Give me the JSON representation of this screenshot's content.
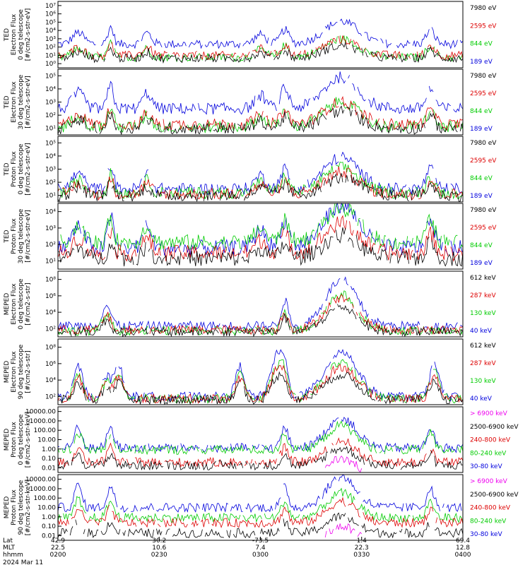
{
  "chart_data": [
    {
      "type": "line",
      "instrument": "TED",
      "ylabel": [
        "TED",
        "Electron Flux",
        "0 deg telescope",
        "[#/cm2-s-str-eV]"
      ],
      "y_ticks": [
        "10⁰",
        "10¹",
        "10²",
        "10³",
        "10⁴",
        "10⁵",
        "10⁶",
        "10⁷"
      ],
      "ylim_log": [
        0,
        7
      ],
      "series": [
        {
          "name": "7980 eV",
          "color": "#000000",
          "profile": "black",
          "level": 1.0
        },
        {
          "name": "2595 eV",
          "color": "#dd0000",
          "profile": "red",
          "level": 1.3
        },
        {
          "name": "844 eV",
          "color": "#00cc00",
          "profile": "green",
          "level": 1.1
        },
        {
          "name": "189 eV",
          "color": "#0000dd",
          "profile": "blue",
          "level": 2.5
        }
      ]
    },
    {
      "type": "line",
      "instrument": "TED",
      "ylabel": [
        "TED",
        "Electron Flux",
        "30 deg telescope",
        "[#/cm2-s-str-eV]"
      ],
      "y_ticks": [
        "10¹",
        "10²",
        "10³",
        "10⁴",
        "10⁵"
      ],
      "ylim_log": [
        0.5,
        5.5
      ],
      "series": [
        {
          "name": "7980 eV",
          "color": "#000000",
          "profile": "black",
          "level": 1.0
        },
        {
          "name": "2595 eV",
          "color": "#dd0000",
          "profile": "red",
          "level": 1.3
        },
        {
          "name": "844 eV",
          "color": "#00cc00",
          "profile": "green",
          "level": 1.1
        },
        {
          "name": "189 eV",
          "color": "#0000dd",
          "profile": "blue",
          "level": 2.5
        }
      ]
    },
    {
      "type": "line",
      "instrument": "TED",
      "ylabel": [
        "TED",
        "Proton Flux",
        "0 deg telescope",
        "[#/cm2-s-str-eV]"
      ],
      "y_ticks": [
        "10¹",
        "10²",
        "10³",
        "10⁴",
        "10⁵"
      ],
      "ylim_log": [
        0.5,
        5.5
      ],
      "series": [
        {
          "name": "7980 eV",
          "color": "#000000",
          "profile": "black",
          "level": 1.0
        },
        {
          "name": "2595 eV",
          "color": "#dd0000",
          "profile": "red",
          "level": 1.1
        },
        {
          "name": "844 eV",
          "color": "#00cc00",
          "profile": "green",
          "level": 1.2
        },
        {
          "name": "189 eV",
          "color": "#0000dd",
          "profile": "blue",
          "level": 1.5
        }
      ]
    },
    {
      "type": "line",
      "instrument": "TED",
      "ylabel": [
        "TED",
        "Proton Flux",
        "30 deg telescope",
        "[#/cm2-s-str-eV]"
      ],
      "y_ticks": [
        "10¹",
        "10²",
        "10³",
        "10⁴"
      ],
      "ylim_log": [
        0.8,
        4.5
      ],
      "series": [
        {
          "name": "7980 eV",
          "color": "#000000",
          "profile": "black",
          "level": 1.4
        },
        {
          "name": "2595 eV",
          "color": "#dd0000",
          "profile": "red",
          "level": 1.7
        },
        {
          "name": "844 eV",
          "color": "#00cc00",
          "profile": "green",
          "level": 2.3
        },
        {
          "name": "189 eV",
          "color": "#0000dd",
          "profile": "blue",
          "level": 2.0
        }
      ]
    },
    {
      "type": "line",
      "instrument": "MEPED",
      "ylabel": [
        "MEPED",
        "Electron Flux",
        "0 deg telescope",
        "[#/cm2-s-str]"
      ],
      "y_ticks": [
        "10²",
        "10⁴",
        "10⁶",
        "10⁸"
      ],
      "ylim_log": [
        1.5,
        8
      ],
      "series": [
        {
          "name": "612 keV",
          "color": "#000000",
          "profile": "black",
          "level": 2.0
        },
        {
          "name": "287 keV",
          "color": "#dd0000",
          "profile": "red",
          "level": 2.2
        },
        {
          "name": "130 keV",
          "color": "#00cc00",
          "profile": "green",
          "level": 2.1
        },
        {
          "name": "40 keV",
          "color": "#0000dd",
          "profile": "blue",
          "level": 2.6
        }
      ]
    },
    {
      "type": "line",
      "instrument": "MEPED",
      "ylabel": [
        "MEPED",
        "Electron Flux",
        "90 deg telescope",
        "[#/cm2-s-str]"
      ],
      "y_ticks": [
        "10²",
        "10⁴",
        "10⁶",
        "10⁸"
      ],
      "ylim_log": [
        1.5,
        8
      ],
      "series": [
        {
          "name": "612 keV",
          "color": "#000000",
          "profile": "black",
          "level": 2.0
        },
        {
          "name": "287 keV",
          "color": "#dd0000",
          "profile": "red",
          "level": 2.1
        },
        {
          "name": "130 keV",
          "color": "#00cc00",
          "profile": "green",
          "level": 2.1
        },
        {
          "name": "40 keV",
          "color": "#0000dd",
          "profile": "blue",
          "level": 2.3
        }
      ]
    },
    {
      "type": "line",
      "instrument": "MEPED",
      "ylabel": [
        "MEPED",
        "Proton Flux",
        "0 deg telescope",
        "[#/cm2-s-str-keV]"
      ],
      "y_ticks": [
        "0.01",
        "0.10",
        "1.00",
        "10.00",
        "100.00",
        "1000.00",
        "10000.00"
      ],
      "ylim_log": [
        -2.2,
        4.2
      ],
      "series": [
        {
          "name": "> 6900 keV",
          "color": "#ee00ee",
          "profile": "magenta",
          "level": -2.5
        },
        {
          "name": "2500-6900 keV",
          "color": "#000000",
          "profile": "black",
          "level": -1.5
        },
        {
          "name": "240-800 keV",
          "color": "#dd0000",
          "profile": "red",
          "level": -1.2
        },
        {
          "name": "80-240 keV",
          "color": "#00cc00",
          "profile": "green",
          "level": 0.0
        },
        {
          "name": "30-80 keV",
          "color": "#0000dd",
          "profile": "blue",
          "level": 0.2
        }
      ]
    },
    {
      "type": "line",
      "instrument": "MEPED",
      "ylabel": [
        "MEPED",
        "Proton Flux",
        "90 deg telescope",
        "[#/cm2-s-str-keV]"
      ],
      "y_ticks": [
        "0.01",
        "0.10",
        "1.00",
        "10.00",
        "100.00",
        "1000.00",
        "10000.00"
      ],
      "ylim_log": [
        -2.2,
        4.2
      ],
      "series": [
        {
          "name": "> 6900 keV",
          "color": "#ee00ee",
          "profile": "magenta",
          "level": -2.5
        },
        {
          "name": "2500-6900 keV",
          "color": "#000000",
          "profile": "black",
          "level": -1.5
        },
        {
          "name": "240-800 keV",
          "color": "#dd0000",
          "profile": "red",
          "level": -0.5
        },
        {
          "name": "80-240 keV",
          "color": "#00cc00",
          "profile": "green",
          "level": 0.0
        },
        {
          "name": "30-80 keV",
          "color": "#0000dd",
          "profile": "blue",
          "level": 1.0
        }
      ]
    }
  ],
  "footer": {
    "row_labels": [
      "Lat",
      "MLT",
      "hhmm"
    ],
    "date": "2024 Mar 11",
    "ticks": [
      {
        "lat": "42.9",
        "mlt": "22.5",
        "hhmm": "0200"
      },
      {
        "lat": "30.2",
        "mlt": "10.6",
        "hhmm": "0230"
      },
      {
        "lat": "-73.5",
        "mlt": "7.4",
        "hhmm": "0300"
      },
      {
        "lat": "1.4",
        "mlt": "22.3",
        "hhmm": "0330"
      },
      {
        "lat": "69.4",
        "mlt": "12.8",
        "hhmm": "0400"
      }
    ]
  }
}
